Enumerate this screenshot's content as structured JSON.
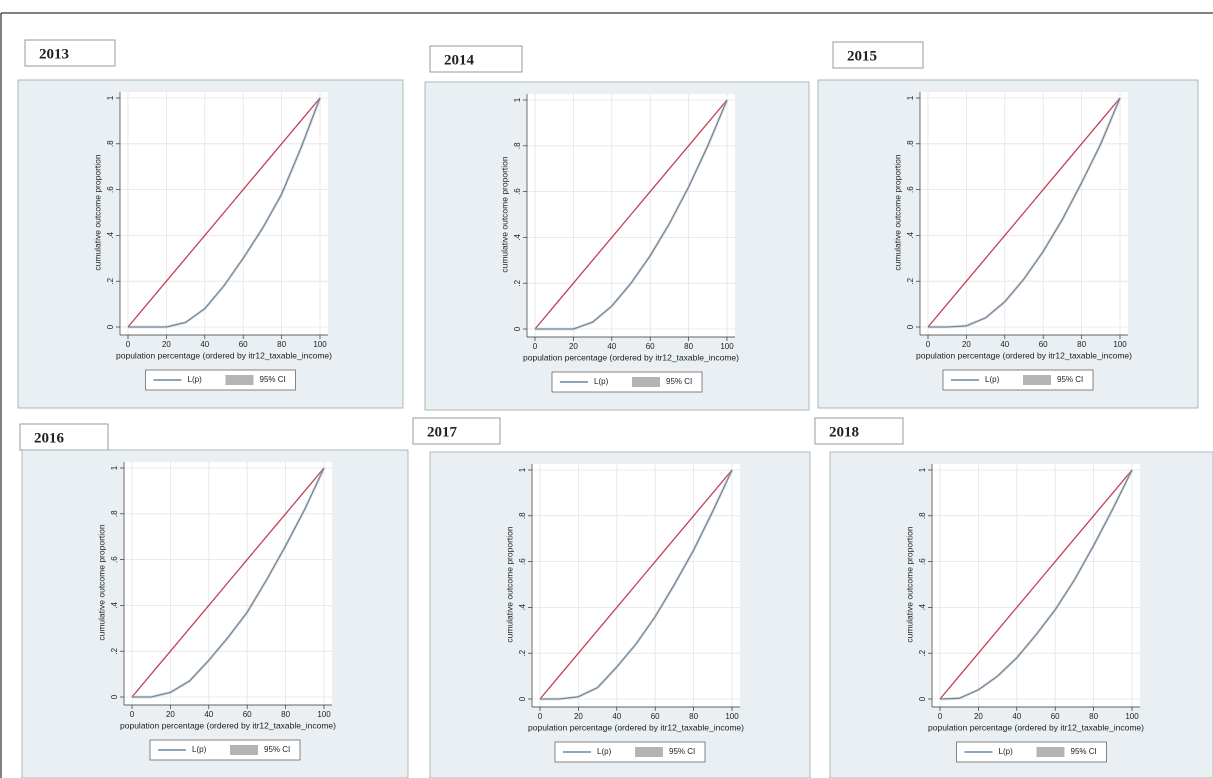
{
  "chart_data": [
    {
      "type": "line",
      "title": "2013",
      "xlabel": "population percentage (ordered by itr12_taxable_income)",
      "ylabel": "cumulative outcome proportion",
      "x": [
        0,
        10,
        20,
        30,
        40,
        50,
        60,
        70,
        80,
        90,
        100
      ],
      "xlim": [
        0,
        100
      ],
      "xticks": [
        0,
        20,
        40,
        60,
        80,
        100
      ],
      "ylim": [
        0,
        1
      ],
      "yticks": [
        0,
        {
          "value": 0.2,
          "label": ".2"
        },
        {
          "value": 0.4,
          "label": ".4"
        },
        {
          "value": 0.6,
          "label": ".6"
        },
        {
          "value": 0.8,
          "label": ".8"
        },
        1
      ],
      "grid": true,
      "series": [
        {
          "color": "#c2405a",
          "values": [
            0,
            0.1,
            0.2,
            0.3,
            0.4,
            0.5,
            0.6,
            0.7,
            0.8,
            0.9,
            1
          ]
        },
        {
          "name": "L(p)",
          "color": "#4d6f8f",
          "values": [
            0,
            0,
            0,
            0.02,
            0.08,
            0.18,
            0.3,
            0.43,
            0.58,
            0.78,
            1
          ]
        },
        {
          "name": "95% CI",
          "color": "#b4b4b4",
          "values": [
            0,
            0,
            0,
            0.02,
            0.08,
            0.18,
            0.3,
            0.43,
            0.58,
            0.78,
            1
          ]
        }
      ]
    },
    {
      "type": "line",
      "title": "2014",
      "xlabel": "population percentage (ordered by itr12_taxable_income)",
      "ylabel": "cumulative outcome proportion",
      "x": [
        0,
        10,
        20,
        30,
        40,
        50,
        60,
        70,
        80,
        90,
        100
      ],
      "xlim": [
        0,
        100
      ],
      "xticks": [
        0,
        20,
        40,
        60,
        80,
        100
      ],
      "ylim": [
        0,
        1
      ],
      "yticks": [
        0,
        {
          "value": 0.2,
          "label": ".2"
        },
        {
          "value": 0.4,
          "label": ".4"
        },
        {
          "value": 0.6,
          "label": ".6"
        },
        {
          "value": 0.8,
          "label": ".8"
        },
        1
      ],
      "grid": true,
      "series": [
        {
          "color": "#c2405a",
          "values": [
            0,
            0.1,
            0.2,
            0.3,
            0.4,
            0.5,
            0.6,
            0.7,
            0.8,
            0.9,
            1
          ]
        },
        {
          "name": "L(p)",
          "color": "#4d6f8f",
          "values": [
            0,
            0,
            0,
            0.03,
            0.1,
            0.2,
            0.32,
            0.46,
            0.62,
            0.8,
            1
          ]
        },
        {
          "name": "95% CI",
          "color": "#b4b4b4",
          "values": [
            0,
            0,
            0,
            0.03,
            0.1,
            0.2,
            0.32,
            0.46,
            0.62,
            0.8,
            1
          ]
        }
      ]
    },
    {
      "type": "line",
      "title": "2015",
      "xlabel": "population percentage (ordered by itr12_taxable_income)",
      "ylabel": "cumulative outcome proportion",
      "x": [
        0,
        10,
        20,
        30,
        40,
        50,
        60,
        70,
        80,
        90,
        100
      ],
      "xlim": [
        0,
        100
      ],
      "xticks": [
        0,
        20,
        40,
        60,
        80,
        100
      ],
      "ylim": [
        0,
        1
      ],
      "yticks": [
        0,
        {
          "value": 0.2,
          "label": ".2"
        },
        {
          "value": 0.4,
          "label": ".4"
        },
        {
          "value": 0.6,
          "label": ".6"
        },
        {
          "value": 0.8,
          "label": ".8"
        },
        1
      ],
      "grid": true,
      "series": [
        {
          "color": "#c2405a",
          "values": [
            0,
            0.1,
            0.2,
            0.3,
            0.4,
            0.5,
            0.6,
            0.7,
            0.8,
            0.9,
            1
          ]
        },
        {
          "name": "L(p)",
          "color": "#4d6f8f",
          "values": [
            0,
            0,
            0.005,
            0.04,
            0.11,
            0.21,
            0.33,
            0.47,
            0.63,
            0.8,
            1
          ]
        },
        {
          "name": "95% CI",
          "color": "#b4b4b4",
          "values": [
            0,
            0,
            0.005,
            0.04,
            0.11,
            0.21,
            0.33,
            0.47,
            0.63,
            0.8,
            1
          ]
        }
      ]
    },
    {
      "type": "line",
      "title": "2016",
      "xlabel": "population percentage (ordered by itr12_taxable_income)",
      "ylabel": "cumulative outcome proportion",
      "x": [
        0,
        10,
        20,
        30,
        40,
        50,
        60,
        70,
        80,
        90,
        100
      ],
      "xlim": [
        0,
        100
      ],
      "xticks": [
        0,
        20,
        40,
        60,
        80,
        100
      ],
      "ylim": [
        0,
        1
      ],
      "yticks": [
        0,
        {
          "value": 0.2,
          "label": ".2"
        },
        {
          "value": 0.4,
          "label": ".4"
        },
        {
          "value": 0.6,
          "label": ".6"
        },
        {
          "value": 0.8,
          "label": ".8"
        },
        1
      ],
      "grid": true,
      "series": [
        {
          "color": "#c2405a",
          "values": [
            0,
            0.1,
            0.2,
            0.3,
            0.4,
            0.5,
            0.6,
            0.7,
            0.8,
            0.9,
            1
          ]
        },
        {
          "name": "L(p)",
          "color": "#4d6f8f",
          "values": [
            0,
            0,
            0.02,
            0.07,
            0.16,
            0.26,
            0.37,
            0.51,
            0.66,
            0.82,
            1
          ]
        },
        {
          "name": "95% CI",
          "color": "#b4b4b4",
          "values": [
            0,
            0,
            0.02,
            0.07,
            0.16,
            0.26,
            0.37,
            0.51,
            0.66,
            0.82,
            1
          ]
        }
      ]
    },
    {
      "type": "line",
      "title": "2017",
      "xlabel": "population percentage (ordered by itr12_taxable_income)",
      "ylabel": "cumulative outcome proportion",
      "x": [
        0,
        10,
        20,
        30,
        40,
        50,
        60,
        70,
        80,
        90,
        100
      ],
      "xlim": [
        0,
        100
      ],
      "xticks": [
        0,
        20,
        40,
        60,
        80,
        100
      ],
      "ylim": [
        0,
        1
      ],
      "yticks": [
        0,
        {
          "value": 0.2,
          "label": ".2"
        },
        {
          "value": 0.4,
          "label": ".4"
        },
        {
          "value": 0.6,
          "label": ".6"
        },
        {
          "value": 0.8,
          "label": ".8"
        },
        1
      ],
      "grid": true,
      "series": [
        {
          "color": "#c2405a",
          "values": [
            0,
            0.1,
            0.2,
            0.3,
            0.4,
            0.5,
            0.6,
            0.7,
            0.8,
            0.9,
            1
          ]
        },
        {
          "name": "L(p)",
          "color": "#4d6f8f",
          "values": [
            0,
            0,
            0.01,
            0.05,
            0.14,
            0.24,
            0.36,
            0.5,
            0.65,
            0.82,
            1
          ]
        },
        {
          "name": "95% CI",
          "color": "#b4b4b4",
          "values": [
            0,
            0,
            0.01,
            0.05,
            0.14,
            0.24,
            0.36,
            0.5,
            0.65,
            0.82,
            1
          ]
        }
      ]
    },
    {
      "type": "line",
      "title": "2018",
      "xlabel": "population percentage (ordered by itr12_taxable_income)",
      "ylabel": "cumulative outcome proportion",
      "x": [
        0,
        10,
        20,
        30,
        40,
        50,
        60,
        70,
        80,
        90,
        100
      ],
      "xlim": [
        0,
        100
      ],
      "xticks": [
        0,
        20,
        40,
        60,
        80,
        100
      ],
      "ylim": [
        0,
        1
      ],
      "yticks": [
        0,
        {
          "value": 0.2,
          "label": ".2"
        },
        {
          "value": 0.4,
          "label": ".4"
        },
        {
          "value": 0.6,
          "label": ".6"
        },
        {
          "value": 0.8,
          "label": ".8"
        },
        1
      ],
      "grid": true,
      "series": [
        {
          "color": "#c2405a",
          "values": [
            0,
            0.1,
            0.2,
            0.3,
            0.4,
            0.5,
            0.6,
            0.7,
            0.8,
            0.9,
            1
          ]
        },
        {
          "name": "L(p)",
          "color": "#4d6f8f",
          "values": [
            0,
            0.003,
            0.04,
            0.1,
            0.18,
            0.28,
            0.39,
            0.52,
            0.67,
            0.83,
            1
          ]
        },
        {
          "name": "95% CI",
          "color": "#b4b4b4",
          "values": [
            0,
            0.003,
            0.04,
            0.1,
            0.18,
            0.28,
            0.39,
            0.52,
            0.67,
            0.83,
            1
          ]
        }
      ]
    }
  ]
}
